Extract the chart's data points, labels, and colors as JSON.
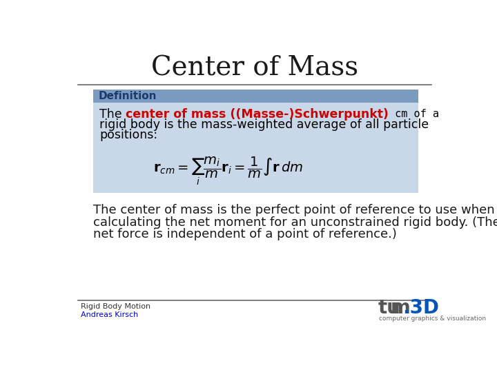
{
  "title": "Center of Mass",
  "title_fontsize": 28,
  "title_color": "#1a1a1a",
  "bg_color": "#ffffff",
  "def_box_color": "#c8d8e8",
  "def_header_color": "#7a9bbf",
  "def_header_text": "Definition",
  "def_header_text_color": "#1a3a6b",
  "def_header_fontsize": 11,
  "def_text_highlight": "center of mass ((Masse-)Schwerpunkt)",
  "def_text_highlight_color": "#cc0000",
  "def_cm_text": " cm of a",
  "def_text_3": "rigid body is the mass-weighted average of all particle",
  "def_text_4": "positions:",
  "def_fontsize": 12.5,
  "formula": "$\\mathbf{r}_{cm} = \\sum_i \\dfrac{m_i}{m} \\mathbf{r}_i = \\dfrac{1}{m} \\int \\mathbf{r}\\,dm$",
  "formula_fontsize": 14,
  "body_text_1": "The center of mass is the perfect point of reference to use when",
  "body_text_2": "calculating the net moment for an unconstrained rigid body. (The",
  "body_text_3": "net force is independent of a point of reference.)",
  "body_fontsize": 13,
  "body_color": "#1a1a1a",
  "footer_text1": "Rigid Body Motion",
  "footer_text2": "Andreas Kirsch",
  "footer_fontsize": 8,
  "footer_link_color": "#0000cc",
  "tum_color": "#555555",
  "tum3d_color": "#0055bb",
  "sub_text": "computer graphics & visualization",
  "sub_color": "#666666",
  "line_color": "#666666"
}
